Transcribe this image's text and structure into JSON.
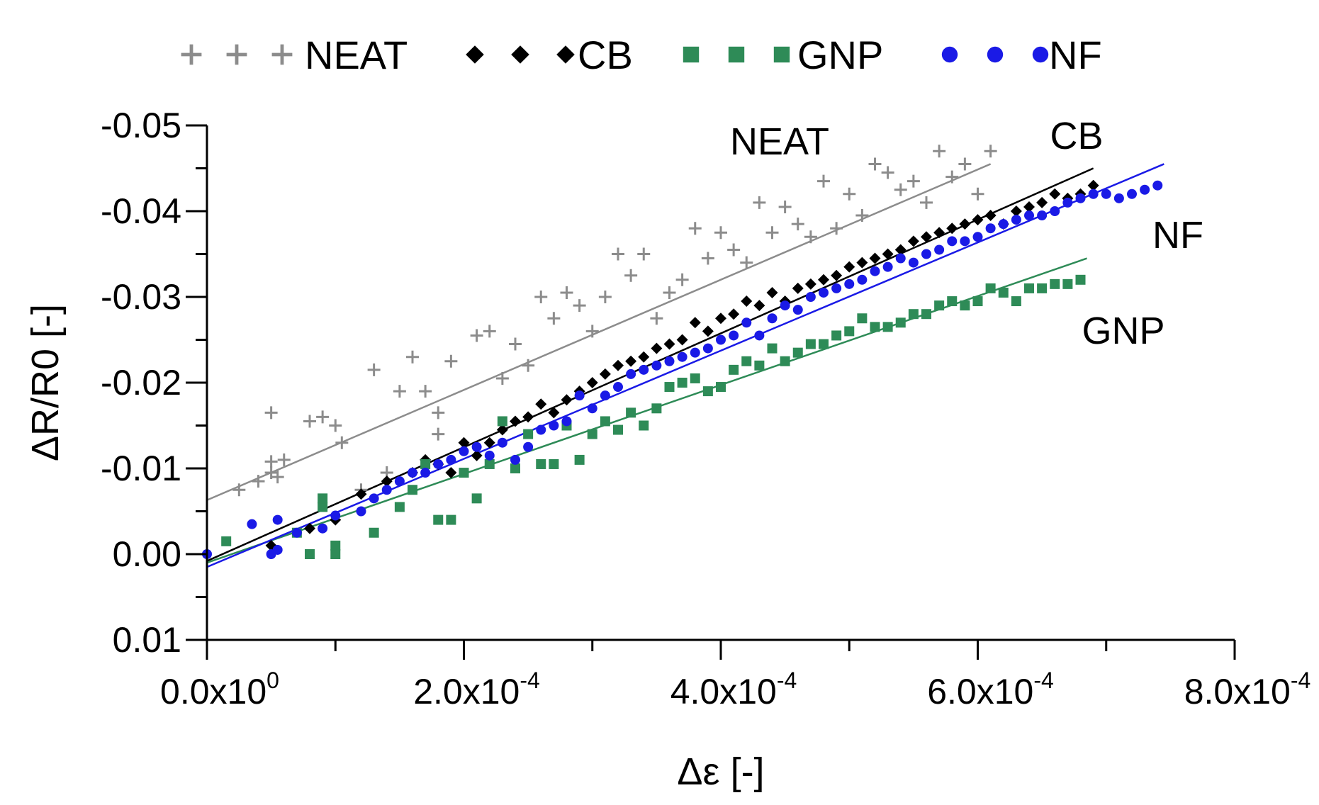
{
  "chart_data": {
    "type": "scatter",
    "title": "",
    "xlabel": "Δε [-]",
    "ylabel": "ΔR/R0 [-]",
    "xlim": [
      0,
      0.0008
    ],
    "ylim": [
      0.01,
      -0.05
    ],
    "y_axis_inverted": true,
    "x_ticks": [
      {
        "value": 0,
        "mantissa": "0.0x10",
        "exp": "0"
      },
      {
        "value": 0.0002,
        "mantissa": "2.0x10",
        "exp": "-4"
      },
      {
        "value": 0.0004,
        "mantissa": "4.0x10",
        "exp": "-4"
      },
      {
        "value": 0.0006,
        "mantissa": "6.0x10",
        "exp": "-4"
      },
      {
        "value": 0.0008,
        "mantissa": "8.0x10",
        "exp": "-4"
      }
    ],
    "y_ticks": [
      {
        "value": -0.05,
        "label": "-0.05"
      },
      {
        "value": -0.04,
        "label": "-0.04"
      },
      {
        "value": -0.03,
        "label": "-0.03"
      },
      {
        "value": -0.02,
        "label": "-0.02"
      },
      {
        "value": -0.01,
        "label": "-0.01"
      },
      {
        "value": 0.0,
        "label": "0.00"
      },
      {
        "value": 0.01,
        "label": "0.01"
      }
    ],
    "grid": false,
    "legend_position": "top",
    "series": [
      {
        "name": "NEAT",
        "color": "#8c8c8c",
        "marker": "plus",
        "fit": {
          "x": [
            0,
            0.00061
          ],
          "y": [
            -0.0063,
            -0.0455
          ]
        },
        "annotation": "NEAT",
        "points": [
          [
            2.5e-05,
            -0.0075
          ],
          [
            4e-05,
            -0.0085
          ],
          [
            5e-05,
            -0.0095
          ],
          [
            5e-05,
            -0.0108
          ],
          [
            5e-05,
            -0.0165
          ],
          [
            5.5e-05,
            -0.009
          ],
          [
            6e-05,
            -0.011
          ],
          [
            8e-05,
            -0.0155
          ],
          [
            9e-05,
            -0.016
          ],
          [
            0.0001,
            -0.015
          ],
          [
            0.000105,
            -0.013
          ],
          [
            0.00012,
            -0.0075
          ],
          [
            0.00013,
            -0.0215
          ],
          [
            0.00014,
            -0.0095
          ],
          [
            0.00015,
            -0.019
          ],
          [
            0.00016,
            -0.023
          ],
          [
            0.00017,
            -0.019
          ],
          [
            0.00018,
            -0.014
          ],
          [
            0.00018,
            -0.0165
          ],
          [
            0.00019,
            -0.0225
          ],
          [
            0.00021,
            -0.0255
          ],
          [
            0.00022,
            -0.026
          ],
          [
            0.00023,
            -0.0205
          ],
          [
            0.00024,
            -0.0245
          ],
          [
            0.00025,
            -0.022
          ],
          [
            0.00026,
            -0.03
          ],
          [
            0.00027,
            -0.0275
          ],
          [
            0.00028,
            -0.0305
          ],
          [
            0.00029,
            -0.029
          ],
          [
            0.0003,
            -0.026
          ],
          [
            0.00031,
            -0.03
          ],
          [
            0.00032,
            -0.035
          ],
          [
            0.00033,
            -0.0325
          ],
          [
            0.00034,
            -0.035
          ],
          [
            0.00035,
            -0.0275
          ],
          [
            0.00036,
            -0.0305
          ],
          [
            0.00037,
            -0.032
          ],
          [
            0.00038,
            -0.038
          ],
          [
            0.00039,
            -0.0345
          ],
          [
            0.0004,
            -0.0375
          ],
          [
            0.00041,
            -0.0355
          ],
          [
            0.00042,
            -0.034
          ],
          [
            0.00043,
            -0.041
          ],
          [
            0.00044,
            -0.0375
          ],
          [
            0.00045,
            -0.0405
          ],
          [
            0.00046,
            -0.0385
          ],
          [
            0.00047,
            -0.037
          ],
          [
            0.00048,
            -0.0435
          ],
          [
            0.00049,
            -0.038
          ],
          [
            0.0005,
            -0.042
          ],
          [
            0.00051,
            -0.0395
          ],
          [
            0.00052,
            -0.0455
          ],
          [
            0.00053,
            -0.0445
          ],
          [
            0.00054,
            -0.0425
          ],
          [
            0.00055,
            -0.0435
          ],
          [
            0.00056,
            -0.041
          ],
          [
            0.00057,
            -0.047
          ],
          [
            0.00058,
            -0.044
          ],
          [
            0.00059,
            -0.0455
          ],
          [
            0.0006,
            -0.042
          ],
          [
            0.00061,
            -0.047
          ]
        ]
      },
      {
        "name": "CB",
        "color": "#000000",
        "marker": "diamond",
        "fit": {
          "x": [
            0,
            0.00069
          ],
          "y": [
            0.0008,
            -0.045
          ]
        },
        "annotation": "CB",
        "points": [
          [
            5e-05,
            -0.001
          ],
          [
            8e-05,
            -0.003
          ],
          [
            0.0001,
            -0.004
          ],
          [
            0.00012,
            -0.007
          ],
          [
            0.00014,
            -0.0085
          ],
          [
            0.00016,
            -0.0095
          ],
          [
            0.00017,
            -0.011
          ],
          [
            0.00018,
            -0.0105
          ],
          [
            0.00019,
            -0.0095
          ],
          [
            0.0002,
            -0.013
          ],
          [
            0.00021,
            -0.0115
          ],
          [
            0.00022,
            -0.013
          ],
          [
            0.00023,
            -0.0145
          ],
          [
            0.00024,
            -0.0155
          ],
          [
            0.00025,
            -0.016
          ],
          [
            0.00026,
            -0.0175
          ],
          [
            0.00027,
            -0.0165
          ],
          [
            0.00028,
            -0.018
          ],
          [
            0.00029,
            -0.019
          ],
          [
            0.0003,
            -0.02
          ],
          [
            0.00031,
            -0.021
          ],
          [
            0.00032,
            -0.022
          ],
          [
            0.00033,
            -0.0225
          ],
          [
            0.00034,
            -0.023
          ],
          [
            0.00035,
            -0.024
          ],
          [
            0.00036,
            -0.0245
          ],
          [
            0.00037,
            -0.025
          ],
          [
            0.00038,
            -0.027
          ],
          [
            0.00039,
            -0.026
          ],
          [
            0.0004,
            -0.0275
          ],
          [
            0.00041,
            -0.028
          ],
          [
            0.00042,
            -0.0295
          ],
          [
            0.00043,
            -0.029
          ],
          [
            0.00044,
            -0.0305
          ],
          [
            0.00045,
            -0.0295
          ],
          [
            0.00046,
            -0.031
          ],
          [
            0.00047,
            -0.0315
          ],
          [
            0.00048,
            -0.032
          ],
          [
            0.00049,
            -0.0325
          ],
          [
            0.0005,
            -0.0335
          ],
          [
            0.00051,
            -0.034
          ],
          [
            0.00052,
            -0.0345
          ],
          [
            0.00053,
            -0.035
          ],
          [
            0.00054,
            -0.0355
          ],
          [
            0.00055,
            -0.0365
          ],
          [
            0.00056,
            -0.037
          ],
          [
            0.00057,
            -0.0375
          ],
          [
            0.00058,
            -0.038
          ],
          [
            0.00059,
            -0.0385
          ],
          [
            0.0006,
            -0.039
          ],
          [
            0.00061,
            -0.0395
          ],
          [
            0.00062,
            -0.0385
          ],
          [
            0.00063,
            -0.04
          ],
          [
            0.00064,
            -0.0405
          ],
          [
            0.00065,
            -0.041
          ],
          [
            0.00066,
            -0.042
          ],
          [
            0.00067,
            -0.0415
          ],
          [
            0.00068,
            -0.042
          ],
          [
            0.00069,
            -0.043
          ]
        ]
      },
      {
        "name": "GNP",
        "color": "#2e8b57",
        "marker": "square",
        "fit": {
          "x": [
            0,
            0.000685
          ],
          "y": [
            0.001,
            -0.0345
          ]
        },
        "annotation": "GNP",
        "points": [
          [
            1.5e-05,
            -0.0015
          ],
          [
            7e-05,
            -0.0025
          ],
          [
            8e-05,
            0.0
          ],
          [
            9e-05,
            -0.0055
          ],
          [
            9e-05,
            -0.0065
          ],
          [
            0.0001,
            -0.001
          ],
          [
            0.0001,
            0.0
          ],
          [
            0.00013,
            -0.0025
          ],
          [
            0.00015,
            -0.0055
          ],
          [
            0.00016,
            -0.0075
          ],
          [
            0.00017,
            -0.0105
          ],
          [
            0.00018,
            -0.004
          ],
          [
            0.00019,
            -0.004
          ],
          [
            0.0002,
            -0.0095
          ],
          [
            0.00021,
            -0.0065
          ],
          [
            0.00022,
            -0.0105
          ],
          [
            0.00023,
            -0.0155
          ],
          [
            0.00024,
            -0.01
          ],
          [
            0.00025,
            -0.014
          ],
          [
            0.00026,
            -0.0105
          ],
          [
            0.00027,
            -0.0105
          ],
          [
            0.00028,
            -0.015
          ],
          [
            0.00029,
            -0.011
          ],
          [
            0.0003,
            -0.014
          ],
          [
            0.00031,
            -0.0155
          ],
          [
            0.00032,
            -0.0145
          ],
          [
            0.00033,
            -0.0165
          ],
          [
            0.00034,
            -0.015
          ],
          [
            0.00035,
            -0.017
          ],
          [
            0.00036,
            -0.0195
          ],
          [
            0.00037,
            -0.02
          ],
          [
            0.00038,
            -0.0205
          ],
          [
            0.00039,
            -0.019
          ],
          [
            0.0004,
            -0.0195
          ],
          [
            0.00041,
            -0.0215
          ],
          [
            0.00042,
            -0.0225
          ],
          [
            0.00043,
            -0.022
          ],
          [
            0.00044,
            -0.024
          ],
          [
            0.00045,
            -0.0225
          ],
          [
            0.00046,
            -0.0235
          ],
          [
            0.00047,
            -0.0245
          ],
          [
            0.00048,
            -0.0245
          ],
          [
            0.00049,
            -0.0255
          ],
          [
            0.0005,
            -0.026
          ],
          [
            0.00051,
            -0.0275
          ],
          [
            0.00052,
            -0.0265
          ],
          [
            0.00053,
            -0.0265
          ],
          [
            0.00054,
            -0.027
          ],
          [
            0.00055,
            -0.028
          ],
          [
            0.00056,
            -0.028
          ],
          [
            0.00057,
            -0.029
          ],
          [
            0.00058,
            -0.0295
          ],
          [
            0.00059,
            -0.029
          ],
          [
            0.0006,
            -0.0295
          ],
          [
            0.00061,
            -0.031
          ],
          [
            0.00062,
            -0.0305
          ],
          [
            0.00063,
            -0.0295
          ],
          [
            0.00064,
            -0.031
          ],
          [
            0.00065,
            -0.031
          ],
          [
            0.00066,
            -0.0315
          ],
          [
            0.00067,
            -0.0315
          ],
          [
            0.00068,
            -0.032
          ]
        ]
      },
      {
        "name": "NF",
        "color": "#1a1ae6",
        "marker": "circle",
        "fit": {
          "x": [
            0,
            0.000745
          ],
          "y": [
            0.0015,
            -0.0455
          ]
        },
        "annotation": "NF",
        "points": [
          [
            0.0,
            0.0
          ],
          [
            3.5e-05,
            -0.0035
          ],
          [
            5e-05,
            0.0
          ],
          [
            5.5e-05,
            -0.0005
          ],
          [
            5.5e-05,
            -0.004
          ],
          [
            7e-05,
            -0.0025
          ],
          [
            9e-05,
            -0.003
          ],
          [
            0.0001,
            -0.0045
          ],
          [
            0.00012,
            -0.005
          ],
          [
            0.00013,
            -0.0065
          ],
          [
            0.00014,
            -0.0075
          ],
          [
            0.00015,
            -0.0085
          ],
          [
            0.00016,
            -0.0095
          ],
          [
            0.00017,
            -0.0095
          ],
          [
            0.00018,
            -0.0105
          ],
          [
            0.00019,
            -0.011
          ],
          [
            0.0002,
            -0.012
          ],
          [
            0.00021,
            -0.0125
          ],
          [
            0.00022,
            -0.0115
          ],
          [
            0.00023,
            -0.013
          ],
          [
            0.00024,
            -0.011
          ],
          [
            0.00025,
            -0.0125
          ],
          [
            0.00026,
            -0.0145
          ],
          [
            0.00027,
            -0.015
          ],
          [
            0.00028,
            -0.0155
          ],
          [
            0.00029,
            -0.0185
          ],
          [
            0.0003,
            -0.017
          ],
          [
            0.00031,
            -0.0185
          ],
          [
            0.00032,
            -0.0195
          ],
          [
            0.00033,
            -0.021
          ],
          [
            0.00034,
            -0.0215
          ],
          [
            0.00035,
            -0.022
          ],
          [
            0.00036,
            -0.0225
          ],
          [
            0.00037,
            -0.023
          ],
          [
            0.00038,
            -0.0235
          ],
          [
            0.00039,
            -0.024
          ],
          [
            0.0004,
            -0.025
          ],
          [
            0.00041,
            -0.0255
          ],
          [
            0.00042,
            -0.027
          ],
          [
            0.00043,
            -0.0255
          ],
          [
            0.00044,
            -0.0275
          ],
          [
            0.00045,
            -0.029
          ],
          [
            0.00046,
            -0.0285
          ],
          [
            0.00047,
            -0.03
          ],
          [
            0.00048,
            -0.0305
          ],
          [
            0.00049,
            -0.031
          ],
          [
            0.0005,
            -0.0315
          ],
          [
            0.00051,
            -0.032
          ],
          [
            0.00052,
            -0.033
          ],
          [
            0.00053,
            -0.0335
          ],
          [
            0.00054,
            -0.0345
          ],
          [
            0.00055,
            -0.034
          ],
          [
            0.00056,
            -0.035
          ],
          [
            0.00057,
            -0.0355
          ],
          [
            0.00058,
            -0.0365
          ],
          [
            0.00059,
            -0.0365
          ],
          [
            0.0006,
            -0.037
          ],
          [
            0.00061,
            -0.038
          ],
          [
            0.00062,
            -0.0385
          ],
          [
            0.00063,
            -0.039
          ],
          [
            0.00064,
            -0.0395
          ],
          [
            0.00065,
            -0.0395
          ],
          [
            0.00066,
            -0.04
          ],
          [
            0.00067,
            -0.041
          ],
          [
            0.00068,
            -0.0415
          ],
          [
            0.00069,
            -0.042
          ],
          [
            0.0007,
            -0.042
          ],
          [
            0.00071,
            -0.0415
          ],
          [
            0.00072,
            -0.042
          ],
          [
            0.00073,
            -0.0425
          ],
          [
            0.00074,
            -0.043
          ]
        ]
      }
    ]
  }
}
